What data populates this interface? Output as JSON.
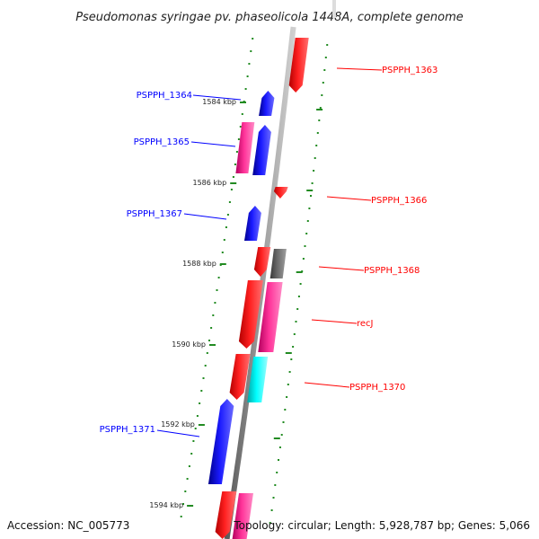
{
  "title": "Pseudomonas syringae pv. phaseolicola 1448A, complete genome",
  "accession": "Accession: NC_005773",
  "topology": "Topology: circular; Length: 5,928,787 bp; Genes: 5,066",
  "colors": {
    "backbone": "#808080",
    "forward_gene": "#ff0000",
    "reverse_gene": "#0000ff",
    "pink_gene": "#ff3399",
    "cyan_gene": "#00ffff",
    "gray_gene": "#666666",
    "tick": "#228b22"
  },
  "kbp_labels": [
    "1584 kbp",
    "1586 kbp",
    "1588 kbp",
    "1590 kbp",
    "1592 kbp",
    "1594 kbp"
  ],
  "gene_labels": [
    {
      "text": "PSPPH_1363",
      "strand": "forward"
    },
    {
      "text": "PSPPH_1364",
      "strand": "reverse"
    },
    {
      "text": "PSPPH_1365",
      "strand": "reverse"
    },
    {
      "text": "PSPPH_1366",
      "strand": "forward"
    },
    {
      "text": "PSPPH_1367",
      "strand": "reverse"
    },
    {
      "text": "PSPPH_1368",
      "strand": "forward"
    },
    {
      "text": "recJ",
      "strand": "forward"
    },
    {
      "text": "PSPPH_1370",
      "strand": "forward"
    },
    {
      "text": "PSPPH_1371",
      "strand": "reverse"
    }
  ]
}
